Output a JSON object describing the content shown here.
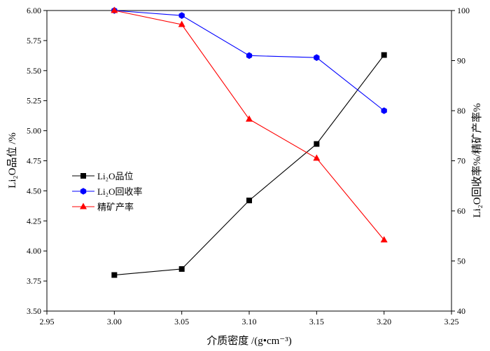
{
  "chart_data": {
    "type": "line",
    "x": [
      3.0,
      3.05,
      3.1,
      3.15,
      3.2
    ],
    "xlabel": "介质密度 /(g•cm⁻³)",
    "xlim": [
      2.95,
      3.25
    ],
    "xticks": [
      "2.95",
      "3.00",
      "3.05",
      "3.10",
      "3.15",
      "3.20",
      "3.25"
    ],
    "ylabel_left": "Li₂O品位 /%",
    "ylim_left": [
      3.5,
      6.0
    ],
    "yticks_left": [
      "3.50",
      "3.75",
      "4.00",
      "4.25",
      "4.50",
      "4.75",
      "5.00",
      "5.25",
      "5.50",
      "5.75",
      "6.00"
    ],
    "ylabel_right": "Li₂O回收率%/精矿产率%",
    "ylim_right": [
      40,
      100
    ],
    "yticks_right": [
      "40",
      "50",
      "60",
      "70",
      "80",
      "90",
      "100"
    ],
    "legend_position": "center-left",
    "series": [
      {
        "name": "Li₂O品位",
        "axis": "left",
        "marker": "square",
        "color": "#000000",
        "values": [
          3.8,
          3.85,
          4.42,
          4.89,
          5.63
        ]
      },
      {
        "name": "Li₂O回收率",
        "axis": "right",
        "marker": "hexagon",
        "color": "#0000ff",
        "values": [
          100.0,
          99.0,
          91.0,
          90.6,
          80.0
        ]
      },
      {
        "name": "精矿产率",
        "axis": "right",
        "marker": "triangle",
        "color": "#ff0000",
        "values": [
          100.0,
          97.2,
          78.3,
          70.5,
          54.2
        ]
      }
    ]
  }
}
